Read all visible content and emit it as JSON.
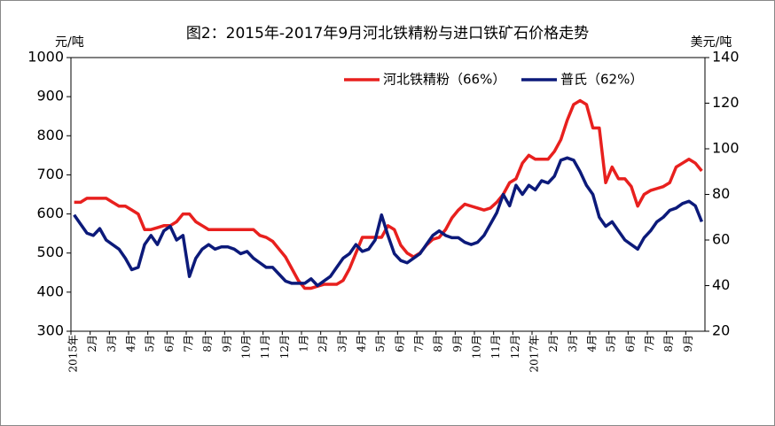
{
  "chart_data": {
    "type": "line",
    "title": "图2：2015年-2017年9月河北铁精粉与进口铁矿石价格走势",
    "ylabel": "元/吨",
    "y2label": "美元/吨",
    "ylim": [
      300,
      1000
    ],
    "yticks": [
      300,
      400,
      500,
      600,
      700,
      800,
      900,
      1000
    ],
    "y2lim": [
      20,
      140
    ],
    "y2ticks": [
      20,
      40,
      60,
      80,
      100,
      120,
      140
    ],
    "legend": "top-right",
    "grid": false,
    "categories": [
      "2015年",
      null,
      null,
      "2月",
      null,
      null,
      "3月",
      null,
      null,
      "4月",
      null,
      null,
      "5月",
      null,
      null,
      "6月",
      null,
      null,
      "7月",
      null,
      null,
      "8月",
      null,
      null,
      "9月",
      null,
      null,
      "10月",
      null,
      null,
      "11月",
      null,
      null,
      "12月",
      null,
      null,
      "1月",
      null,
      null,
      "2月",
      null,
      null,
      "3月",
      null,
      null,
      "4月",
      null,
      null,
      "5月",
      null,
      null,
      "6月",
      null,
      null,
      "7月",
      null,
      null,
      "8月",
      null,
      null,
      "9月",
      null,
      null,
      "10月",
      null,
      null,
      "11月",
      null,
      null,
      "12月",
      null,
      null,
      "2017年",
      null,
      null,
      "2月",
      null,
      null,
      "3月",
      null,
      null,
      "4月",
      null,
      null,
      "5月",
      null,
      null,
      "6月",
      null,
      null,
      "7月",
      null,
      null,
      "8月",
      null,
      null,
      "9月",
      null,
      null
    ],
    "series": [
      {
        "name": "河北铁精粉（66%）",
        "color": "#e8201e",
        "values": [
          630,
          630,
          640,
          640,
          640,
          640,
          630,
          620,
          620,
          610,
          600,
          560,
          560,
          565,
          570,
          570,
          580,
          600,
          600,
          580,
          570,
          560,
          560,
          560,
          560,
          560,
          560,
          560,
          560,
          545,
          540,
          530,
          510,
          490,
          460,
          430,
          410,
          410,
          415,
          420,
          420,
          420,
          430,
          460,
          500,
          540,
          540,
          540,
          540,
          570,
          560,
          520,
          500,
          490,
          500,
          520,
          535,
          540,
          560,
          590,
          610,
          625,
          620,
          615,
          610,
          615,
          630,
          650,
          680,
          690,
          730,
          750,
          740,
          740,
          740,
          760,
          790,
          840,
          880,
          890,
          880,
          820,
          820,
          680,
          720,
          690,
          690,
          670,
          620,
          650,
          660,
          665,
          670,
          680,
          720,
          730,
          740,
          730,
          710
        ]
      },
      {
        "name": "普氏（62%）",
        "color": "#0c1a7a",
        "axis": "y2",
        "values": [
          71,
          67,
          63,
          62,
          65,
          60,
          58,
          56,
          52,
          47,
          48,
          58,
          62,
          58,
          64,
          66,
          60,
          62,
          44,
          52,
          56,
          58,
          56,
          57,
          57,
          56,
          54,
          55,
          52,
          50,
          48,
          48,
          45,
          42,
          41,
          41,
          41,
          43,
          40,
          42,
          44,
          48,
          52,
          54,
          58,
          55,
          56,
          60,
          71,
          62,
          54,
          51,
          50,
          52,
          54,
          58,
          62,
          64,
          62,
          61,
          61,
          59,
          58,
          59,
          62,
          67,
          72,
          80,
          75,
          84,
          80,
          84,
          82,
          86,
          85,
          88,
          95,
          96,
          95,
          90,
          84,
          80,
          70,
          66,
          68,
          64,
          60,
          58,
          56,
          61,
          64,
          68,
          70,
          73,
          74,
          76,
          77,
          75,
          68
        ]
      }
    ]
  }
}
